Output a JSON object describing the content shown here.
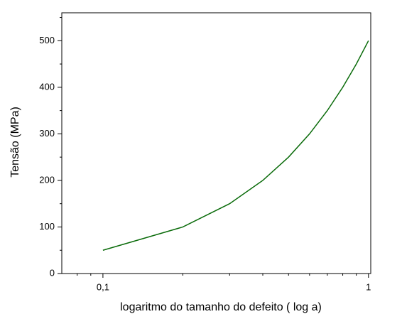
{
  "chart_data": {
    "type": "line",
    "x_label": "logaritmo do tamanho do defeito ( log a)",
    "y_label": "Tensão (MPa)",
    "x": [
      0.1,
      0.2,
      0.3,
      0.4,
      0.5,
      0.6,
      0.7,
      0.8,
      0.9,
      1
    ],
    "series": [
      {
        "color": "#0a6b0a",
        "values": [
          50,
          100,
          150,
          200,
          250,
          300,
          350,
          400,
          450,
          500
        ]
      }
    ],
    "x_log": true,
    "xlim": [
      0.07,
      1.02
    ],
    "xticks": [
      {
        "value": 0.1,
        "label": "0,1"
      },
      1
    ],
    "xminor": [
      0.08,
      0.09,
      0.2,
      0.3,
      0.4,
      0.5,
      0.6,
      0.7,
      0.8,
      0.9
    ],
    "ylim": [
      0,
      560
    ],
    "yticks": [
      0,
      100,
      200,
      300,
      400,
      500
    ],
    "yminor": [
      50,
      150,
      250,
      350,
      450,
      550
    ],
    "grid": false
  }
}
